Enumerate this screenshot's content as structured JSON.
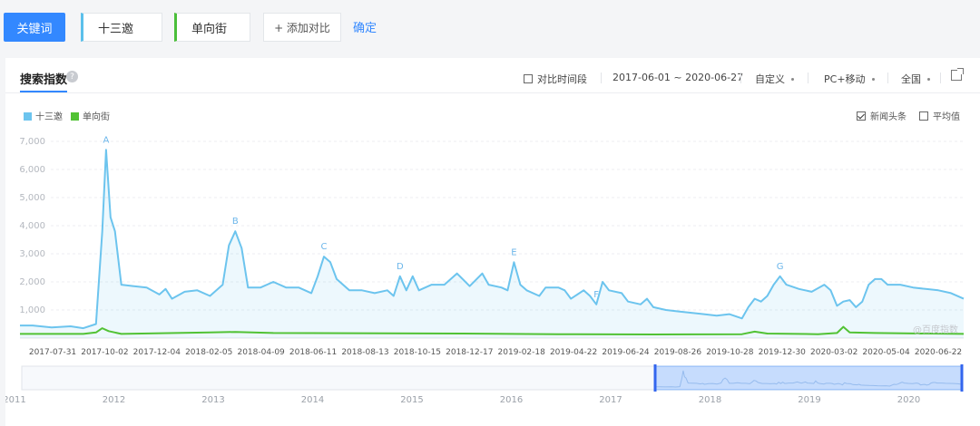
{
  "toolbar": {
    "keyword_button": "关键词",
    "keyword1": "十三邀",
    "keyword2": "单向街",
    "add_compare": "+ 添加对比",
    "confirm": "确定"
  },
  "panel": {
    "title": "搜索指数",
    "compare_period": "对比时间段",
    "date_range": "2017-06-01 ~ 2020-06-27",
    "custom": "自定义",
    "device": "PC+移动",
    "region": "全国",
    "news_headlines": "新闻头条",
    "average": "平均值",
    "watermark": "@百度指数"
  },
  "colors": {
    "series1": "#6cc4ee",
    "series2": "#52c234",
    "accent": "#3388ff"
  },
  "chart_data": {
    "type": "area",
    "y_ticks": [
      "1,000",
      "2,000",
      "3,000",
      "4,000",
      "5,000",
      "6,000",
      "7,000"
    ],
    "ylim": [
      0,
      7200
    ],
    "x_ticks": [
      "2017-07-31",
      "2017-10-02",
      "2017-12-04",
      "2018-02-05",
      "2018-04-09",
      "2018-06-11",
      "2018-08-13",
      "2018-10-15",
      "2018-12-17",
      "2019-02-18",
      "2019-04-22",
      "2019-06-24",
      "2019-08-26",
      "2019-10-28",
      "2019-12-30",
      "2020-03-02",
      "2020-05-04",
      "2020-06-22"
    ],
    "series": [
      {
        "name": "十三邀",
        "color": "#6cc4ee",
        "points": [
          [
            0,
            450
          ],
          [
            2,
            450
          ],
          [
            5,
            380
          ],
          [
            8,
            420
          ],
          [
            10,
            350
          ],
          [
            12,
            500
          ],
          [
            13,
            3800
          ],
          [
            13.6,
            6700
          ],
          [
            14.3,
            4300
          ],
          [
            15,
            3800
          ],
          [
            16,
            1900
          ],
          [
            18,
            1850
          ],
          [
            20,
            1800
          ],
          [
            22,
            1550
          ],
          [
            23,
            1750
          ],
          [
            24,
            1400
          ],
          [
            26,
            1650
          ],
          [
            28,
            1700
          ],
          [
            30,
            1500
          ],
          [
            32,
            1900
          ],
          [
            33,
            3300
          ],
          [
            34,
            3800
          ],
          [
            35,
            3200
          ],
          [
            36,
            1800
          ],
          [
            38,
            1800
          ],
          [
            40,
            2000
          ],
          [
            42,
            1800
          ],
          [
            44,
            1800
          ],
          [
            46,
            1600
          ],
          [
            47,
            2200
          ],
          [
            48,
            2900
          ],
          [
            49,
            2700
          ],
          [
            50,
            2100
          ],
          [
            52,
            1700
          ],
          [
            54,
            1700
          ],
          [
            56,
            1600
          ],
          [
            58,
            1700
          ],
          [
            59,
            1500
          ],
          [
            60,
            2200
          ],
          [
            61,
            1700
          ],
          [
            62,
            2200
          ],
          [
            63,
            1700
          ],
          [
            65,
            1900
          ],
          [
            67,
            1900
          ],
          [
            69,
            2300
          ],
          [
            71,
            1850
          ],
          [
            73,
            2300
          ],
          [
            74,
            1900
          ],
          [
            76,
            1800
          ],
          [
            77,
            1700
          ],
          [
            78,
            2700
          ],
          [
            79,
            1900
          ],
          [
            80,
            1700
          ],
          [
            82,
            1500
          ],
          [
            83,
            1800
          ],
          [
            85,
            1800
          ],
          [
            86,
            1700
          ],
          [
            87,
            1400
          ],
          [
            89,
            1700
          ],
          [
            90,
            1500
          ],
          [
            91,
            1200
          ],
          [
            92,
            2000
          ],
          [
            93,
            1700
          ],
          [
            95,
            1600
          ],
          [
            96,
            1300
          ],
          [
            98,
            1200
          ],
          [
            99,
            1400
          ],
          [
            100,
            1100
          ],
          [
            102,
            1000
          ],
          [
            104,
            950
          ],
          [
            106,
            900
          ],
          [
            108,
            850
          ],
          [
            110,
            800
          ],
          [
            112,
            850
          ],
          [
            114,
            700
          ],
          [
            115,
            1100
          ],
          [
            116,
            1400
          ],
          [
            117,
            1300
          ],
          [
            118,
            1500
          ],
          [
            119,
            1900
          ],
          [
            120,
            2200
          ],
          [
            121,
            1900
          ],
          [
            123,
            1750
          ],
          [
            125,
            1650
          ],
          [
            127,
            1900
          ],
          [
            128,
            1700
          ],
          [
            129,
            1150
          ],
          [
            130,
            1300
          ],
          [
            131,
            1350
          ],
          [
            132,
            1100
          ],
          [
            133,
            1300
          ],
          [
            134,
            1900
          ],
          [
            135,
            2100
          ],
          [
            136,
            2100
          ],
          [
            137,
            1900
          ],
          [
            139,
            1900
          ],
          [
            141,
            1800
          ],
          [
            143,
            1750
          ],
          [
            145,
            1700
          ],
          [
            147,
            1600
          ],
          [
            149,
            1400
          ]
        ]
      },
      {
        "name": "单向街",
        "color": "#52c234",
        "points": [
          [
            0,
            150
          ],
          [
            10,
            150
          ],
          [
            12,
            200
          ],
          [
            13,
            350
          ],
          [
            14,
            250
          ],
          [
            16,
            150
          ],
          [
            30,
            200
          ],
          [
            34,
            220
          ],
          [
            40,
            180
          ],
          [
            70,
            160
          ],
          [
            85,
            140
          ],
          [
            100,
            130
          ],
          [
            114,
            140
          ],
          [
            116,
            230
          ],
          [
            118,
            160
          ],
          [
            126,
            140
          ],
          [
            129,
            180
          ],
          [
            130,
            400
          ],
          [
            131,
            200
          ],
          [
            135,
            180
          ],
          [
            149,
            150
          ]
        ]
      }
    ],
    "annotations": [
      {
        "label": "A",
        "x": 13.6
      },
      {
        "label": "B",
        "x": 34
      },
      {
        "label": "C",
        "x": 48
      },
      {
        "label": "D",
        "x": 60
      },
      {
        "label": "E",
        "x": 78
      },
      {
        "label": "F",
        "x": 91
      },
      {
        "label": "G",
        "x": 120
      }
    ],
    "navigator": {
      "years": [
        "2011",
        "2012",
        "2013",
        "2014",
        "2015",
        "2016",
        "2017",
        "2018",
        "2019",
        "2020"
      ],
      "selected_range": [
        "2017-06-01",
        "2020-06-27"
      ]
    }
  }
}
